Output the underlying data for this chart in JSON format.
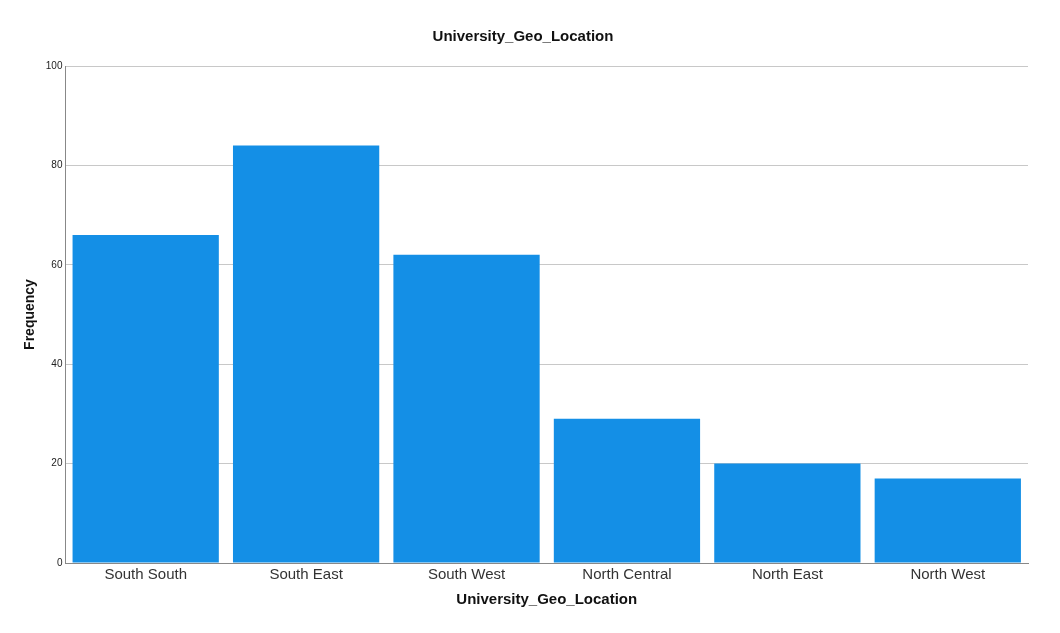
{
  "chart_data": {
    "type": "bar",
    "title": "University_Geo_Location",
    "xlabel": "University_Geo_Location",
    "ylabel": "Frequency",
    "categories": [
      "South South",
      "South East",
      "South West",
      "North Central",
      "North East",
      "North West"
    ],
    "values": [
      66,
      84,
      62,
      29,
      20,
      17
    ],
    "color": "#148fe6",
    "ylim": [
      0,
      100
    ],
    "yticks": [
      0,
      20,
      40,
      60,
      80,
      100
    ],
    "grid": "y",
    "legend": false
  }
}
